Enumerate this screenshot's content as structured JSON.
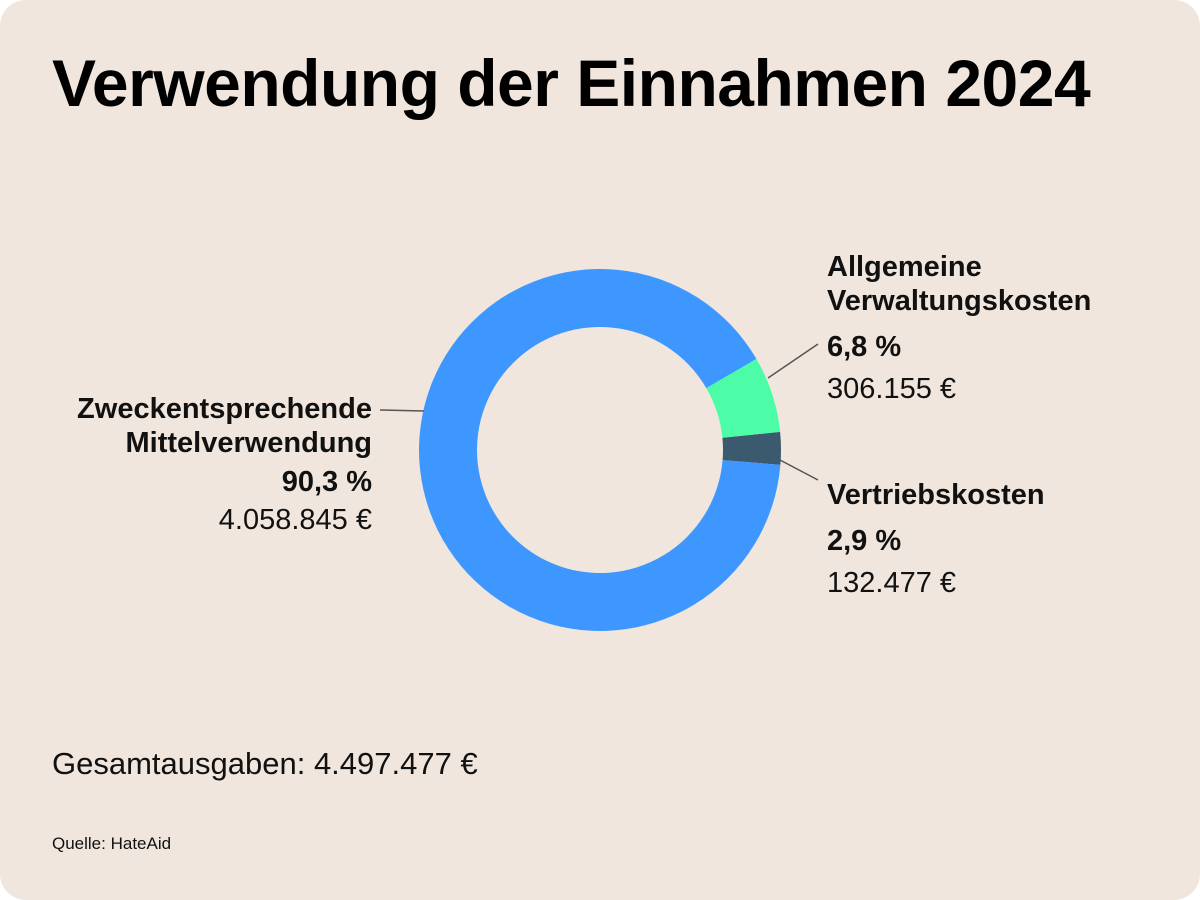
{
  "title": "Verwendung der Einnahmen 2024",
  "chart_data": {
    "type": "pie",
    "variant": "donut",
    "title": "Verwendung der Einnahmen 2024",
    "slices": [
      {
        "name_lines": [
          "Zweckentsprechende",
          "Mittelverwendung"
        ],
        "percent_label": "90,3 %",
        "percent": 90.3,
        "amount_label": "4.058.845 €",
        "amount": 4058845,
        "color": "#3d97ff"
      },
      {
        "name_lines": [
          "Allgemeine",
          "Verwaltungskosten"
        ],
        "percent_label": "6,8 %",
        "percent": 6.8,
        "amount_label": "306.155 €",
        "amount": 306155,
        "color": "#4dfca6"
      },
      {
        "name_lines": [
          "Vertriebskosten"
        ],
        "percent_label": "2,9 %",
        "percent": 2.9,
        "amount_label": "132.477 €",
        "amount": 132477,
        "color": "#3c5a6e"
      }
    ]
  },
  "total_label": "Gesamtausgaben: 4.497.477 €",
  "source_label": "Quelle: HateAid",
  "colors": {
    "background": "#f0e6dd",
    "text": "#111111",
    "leader": "#555555"
  }
}
